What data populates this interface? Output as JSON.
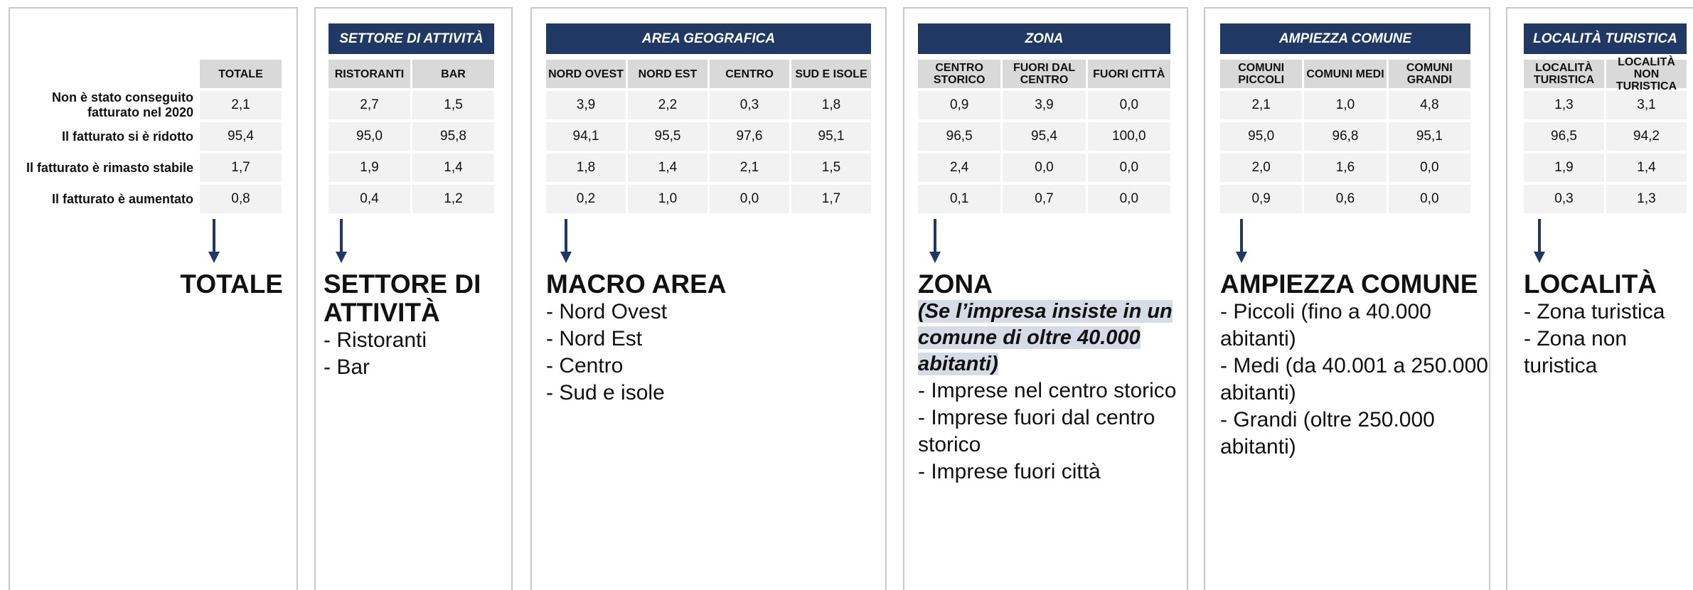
{
  "row_labels": [
    "Non è stato conseguito fatturato nel 2020",
    "Il fatturato si è ridotto",
    "Il fatturato è rimasto stabile",
    "Il fatturato è aumentato"
  ],
  "panels": [
    {
      "columns": [
        "TOTALE"
      ],
      "rows": [
        [
          "2,1"
        ],
        [
          "95,4"
        ],
        [
          "1,7"
        ],
        [
          "0,8"
        ]
      ],
      "heading": "TOTALE"
    },
    {
      "title": "SETTORE DI ATTIVITÀ",
      "columns": [
        "RISTORANTI",
        "BAR"
      ],
      "rows": [
        [
          "2,7",
          "1,5"
        ],
        [
          "95,0",
          "95,8"
        ],
        [
          "1,9",
          "1,4"
        ],
        [
          "0,4",
          "1,2"
        ]
      ],
      "heading": "SETTORE DI ATTIVITÀ",
      "items": [
        "- Ristoranti",
        "- Bar"
      ]
    },
    {
      "title": "AREA GEOGRAFICA",
      "columns": [
        "NORD OVEST",
        "NORD EST",
        "CENTRO",
        "SUD E ISOLE"
      ],
      "rows": [
        [
          "3,9",
          "2,2",
          "0,3",
          "1,8"
        ],
        [
          "94,1",
          "95,5",
          "97,6",
          "95,1"
        ],
        [
          "1,8",
          "1,4",
          "2,1",
          "1,5"
        ],
        [
          "0,2",
          "1,0",
          "0,0",
          "1,7"
        ]
      ],
      "heading": "MACRO AREA",
      "items": [
        "- Nord Ovest",
        "- Nord Est",
        "- Centro",
        "- Sud e isole"
      ]
    },
    {
      "title": "ZONA",
      "columns": [
        "CENTRO STORICO",
        "FUORI DAL CENTRO",
        "FUORI CITTÀ"
      ],
      "rows": [
        [
          "0,9",
          "3,9",
          "0,0"
        ],
        [
          "96,5",
          "95,4",
          "100,0"
        ],
        [
          "2,4",
          "0,0",
          "0,0"
        ],
        [
          "0,1",
          "0,7",
          "0,0"
        ]
      ],
      "heading": "ZONA",
      "note": "(Se l’impresa insiste in un comune di oltre 40.000 abitanti)",
      "items": [
        "- Imprese nel centro storico",
        "- Imprese fuori dal centro storico",
        "- Imprese fuori città"
      ]
    },
    {
      "title": "AMPIEZZA COMUNE",
      "columns": [
        "COMUNI PICCOLI",
        "COMUNI MEDI",
        "COMUNI GRANDI"
      ],
      "rows": [
        [
          "2,1",
          "1,0",
          "4,8"
        ],
        [
          "95,0",
          "96,8",
          "95,1"
        ],
        [
          "2,0",
          "1,6",
          "0,0"
        ],
        [
          "0,9",
          "0,6",
          "0,0"
        ]
      ],
      "heading": "AMPIEZZA COMUNE",
      "items": [
        "- Piccoli (fino a 40.000 abitanti)",
        "- Medi (da 40.001 a 250.000 abitanti)",
        "- Grandi (oltre 250.000 abitanti)"
      ]
    },
    {
      "title": "LOCALITÀ TURISTICA",
      "columns": [
        "LOCALITÀ TURISTICA",
        "LOCALITÀ NON TURISTICA"
      ],
      "rows": [
        [
          "1,3",
          "3,1"
        ],
        [
          "96,5",
          "94,2"
        ],
        [
          "1,9",
          "1,4"
        ],
        [
          "0,3",
          "1,3"
        ]
      ],
      "heading": "LOCALITÀ",
      "items": [
        "- Zona turistica",
        "- Zona non turistica"
      ]
    }
  ]
}
